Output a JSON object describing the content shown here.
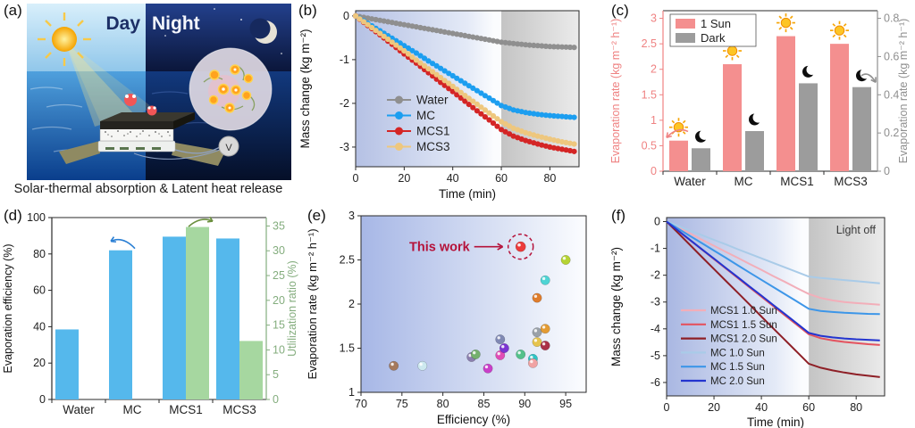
{
  "panel_labels": {
    "a": "(a)",
    "b": "(b)",
    "c": "(c)",
    "d": "(d)",
    "e": "(e)",
    "f": "(f)"
  },
  "panel_a": {
    "day_label": "Day",
    "night_label": "Night",
    "voltmeter_label": "V",
    "caption": "Solar-thermal absorption & Latent heat release"
  },
  "chart_data": [
    {
      "id": "b",
      "type": "line",
      "title": "",
      "xlabel": "Time (min)",
      "ylabel": "Mass change (kg m⁻²)",
      "xlim": [
        0,
        92
      ],
      "ylim": [
        -3.45,
        0.12
      ],
      "xticks": [
        0,
        20,
        40,
        60,
        80
      ],
      "yticks": [
        0,
        -1,
        -2,
        -3
      ],
      "shade_from_x": 60,
      "markers": true,
      "legend_position": "center-left",
      "x": [
        0,
        5,
        10,
        15,
        20,
        25,
        30,
        35,
        40,
        45,
        50,
        55,
        60,
        65,
        70,
        75,
        80,
        85,
        90
      ],
      "series": [
        {
          "name": "Water",
          "color": "#8f8f8f",
          "values": [
            0,
            -0.05,
            -0.1,
            -0.15,
            -0.2,
            -0.25,
            -0.3,
            -0.35,
            -0.4,
            -0.45,
            -0.5,
            -0.55,
            -0.6,
            -0.63,
            -0.66,
            -0.68,
            -0.7,
            -0.71,
            -0.72
          ]
        },
        {
          "name": "MC",
          "color": "#1c9ef0",
          "values": [
            0,
            -0.17,
            -0.34,
            -0.51,
            -0.68,
            -0.85,
            -1.03,
            -1.2,
            -1.37,
            -1.54,
            -1.71,
            -1.88,
            -2.05,
            -2.15,
            -2.21,
            -2.25,
            -2.28,
            -2.3,
            -2.32
          ]
        },
        {
          "name": "MCS1",
          "color": "#d42525",
          "values": [
            0,
            -0.22,
            -0.43,
            -0.65,
            -0.87,
            -1.08,
            -1.3,
            -1.52,
            -1.73,
            -1.95,
            -2.17,
            -2.38,
            -2.6,
            -2.75,
            -2.85,
            -2.93,
            -3.0,
            -3.05,
            -3.1
          ]
        },
        {
          "name": "MCS3",
          "color": "#eec77e",
          "values": [
            0,
            -0.2,
            -0.4,
            -0.6,
            -0.8,
            -1.01,
            -1.21,
            -1.41,
            -1.61,
            -1.82,
            -2.02,
            -2.22,
            -2.42,
            -2.57,
            -2.67,
            -2.75,
            -2.82,
            -2.88,
            -2.93
          ]
        }
      ],
      "legend_order": [
        "Water",
        "MC",
        "MCS1",
        "MCS3"
      ]
    },
    {
      "id": "c",
      "type": "bar",
      "title": "",
      "categories": [
        "Water",
        "MC",
        "MCS1",
        "MCS3"
      ],
      "left_axis": {
        "label": "Evaporation rate (kg m⁻² h⁻¹)",
        "lim": [
          0,
          3.15
        ],
        "ticks": [
          0,
          0.5,
          1,
          1.5,
          2,
          2.5,
          3
        ],
        "color": "#ef8282"
      },
      "right_axis": {
        "label": "Evaporation rate (kg m⁻² h⁻¹)",
        "lim": [
          0,
          0.84
        ],
        "ticks": [
          0,
          0.2,
          0.4,
          0.6,
          0.8
        ],
        "color": "#8f8f8f"
      },
      "series": [
        {
          "name": "1 Sun",
          "axis": "left",
          "color": "#f48f8f",
          "icon": "sun",
          "values": [
            0.6,
            2.1,
            2.65,
            2.5
          ]
        },
        {
          "name": "Dark",
          "axis": "right",
          "color": "#9c9c9c",
          "icon": "moon",
          "values": [
            0.12,
            0.21,
            0.46,
            0.44
          ]
        }
      ],
      "legend_position": "top-left"
    },
    {
      "id": "d",
      "type": "bar",
      "title": "",
      "categories": [
        "Water",
        "MC",
        "MCS1",
        "MCS3"
      ],
      "left_axis": {
        "label": "Evaporation efficiency (%)",
        "lim": [
          0,
          100
        ],
        "ticks": [
          0,
          20,
          40,
          60,
          80,
          100
        ],
        "color": "#222222"
      },
      "right_axis": {
        "label": "Utlilization ratio (%)",
        "lim": [
          0,
          36.7
        ],
        "ticks": [
          0,
          5,
          10,
          15,
          20,
          25,
          30,
          35
        ],
        "color": "#84ad7e"
      },
      "series": [
        {
          "name": "Evaporation efficiency",
          "axis": "left",
          "color": "#55b8ec",
          "values": [
            38.5,
            82,
            89.5,
            88.5
          ]
        },
        {
          "name": "Utilization ratio",
          "axis": "right",
          "color": "#a6d7a0",
          "values": [
            null,
            null,
            34.8,
            11.8
          ]
        }
      ],
      "arrow_colors": {
        "left": "#2a7fd4",
        "right": "#6b8f3e"
      }
    },
    {
      "id": "e",
      "type": "scatter",
      "title": "",
      "xlabel": "Efficiency (%)",
      "ylabel": "Evaporation rate (kg m⁻² h⁻¹)",
      "xlim": [
        70,
        97.5
      ],
      "ylim": [
        1,
        3
      ],
      "xticks": [
        70,
        75,
        80,
        85,
        90,
        95
      ],
      "yticks": [
        1,
        1.5,
        2,
        2.5,
        3
      ],
      "points": [
        {
          "x": 74,
          "y": 1.3,
          "color": "#a5795c"
        },
        {
          "x": 77.5,
          "y": 1.3,
          "color": "#cde9ef"
        },
        {
          "x": 83.5,
          "y": 1.4,
          "color": "#8b7fae"
        },
        {
          "x": 84,
          "y": 1.43,
          "color": "#74b06d"
        },
        {
          "x": 85.5,
          "y": 1.27,
          "color": "#c93fc9"
        },
        {
          "x": 87,
          "y": 1.42,
          "color": "#e04cb5"
        },
        {
          "x": 87.5,
          "y": 1.5,
          "color": "#7b34d2"
        },
        {
          "x": 87,
          "y": 1.6,
          "color": "#8089b4"
        },
        {
          "x": 89.5,
          "y": 1.43,
          "color": "#52c18a"
        },
        {
          "x": 91,
          "y": 1.38,
          "color": "#2fc4c4"
        },
        {
          "x": 91,
          "y": 1.33,
          "color": "#f0a3a3"
        },
        {
          "x": 91.5,
          "y": 1.57,
          "color": "#e6c44e"
        },
        {
          "x": 92.5,
          "y": 1.53,
          "color": "#ab3048"
        },
        {
          "x": 91.5,
          "y": 1.68,
          "color": "#9aa1a8"
        },
        {
          "x": 92.5,
          "y": 1.72,
          "color": "#e39b33"
        },
        {
          "x": 91.5,
          "y": 2.07,
          "color": "#df7d2c"
        },
        {
          "x": 92.5,
          "y": 2.27,
          "color": "#4ed4d4"
        },
        {
          "x": 95,
          "y": 2.5,
          "color": "#b5d333"
        }
      ],
      "highlight": {
        "x": 89.5,
        "y": 2.65,
        "color": "#ec3b3b",
        "annotation": "This work",
        "annotation_color": "#b5123a"
      }
    },
    {
      "id": "f",
      "type": "line",
      "title": "",
      "xlabel": "Time (min)",
      "ylabel": "Mass change (kg m⁻²)",
      "xlim": [
        0,
        92
      ],
      "ylim": [
        -6.5,
        0.15
      ],
      "xticks": [
        0,
        20,
        40,
        60,
        80
      ],
      "yticks": [
        0,
        -1,
        -2,
        -3,
        -4,
        -5,
        -6
      ],
      "shade_from_x": 60,
      "shade_label": "Light off",
      "markers": false,
      "legend_position": "bottom-left",
      "x": [
        0,
        5,
        10,
        15,
        20,
        25,
        30,
        35,
        40,
        45,
        50,
        55,
        60,
        65,
        70,
        75,
        80,
        85,
        90
      ],
      "series": [
        {
          "name": "MCS1 1.0 Sun",
          "color": "#f2aeb9",
          "values": [
            0,
            -0.23,
            -0.45,
            -0.68,
            -0.9,
            -1.13,
            -1.35,
            -1.58,
            -1.8,
            -2.03,
            -2.25,
            -2.48,
            -2.7,
            -2.85,
            -2.94,
            -3.0,
            -3.04,
            -3.07,
            -3.1
          ]
        },
        {
          "name": "MCS1 1.5 Sun",
          "color": "#e4535f",
          "values": [
            0,
            -0.35,
            -0.7,
            -1.05,
            -1.4,
            -1.75,
            -2.1,
            -2.45,
            -2.8,
            -3.15,
            -3.5,
            -3.85,
            -4.2,
            -4.35,
            -4.43,
            -4.49,
            -4.53,
            -4.57,
            -4.6
          ]
        },
        {
          "name": "MCS1 2.0 Sun",
          "color": "#8e1f26",
          "values": [
            0,
            -0.44,
            -0.88,
            -1.33,
            -1.77,
            -2.21,
            -2.65,
            -3.09,
            -3.54,
            -3.98,
            -4.42,
            -4.86,
            -5.3,
            -5.45,
            -5.55,
            -5.63,
            -5.7,
            -5.75,
            -5.8
          ]
        },
        {
          "name": "MC 1.0 Sun",
          "color": "#a9cbe8",
          "values": [
            0,
            -0.17,
            -0.34,
            -0.51,
            -0.68,
            -0.85,
            -1.03,
            -1.2,
            -1.37,
            -1.54,
            -1.71,
            -1.88,
            -2.05,
            -2.1,
            -2.14,
            -2.18,
            -2.22,
            -2.26,
            -2.3
          ]
        },
        {
          "name": "MC 1.5 Sun",
          "color": "#3d96e8",
          "values": [
            0,
            -0.27,
            -0.54,
            -0.81,
            -1.08,
            -1.35,
            -1.63,
            -1.9,
            -2.17,
            -2.44,
            -2.71,
            -2.98,
            -3.25,
            -3.33,
            -3.37,
            -3.4,
            -3.42,
            -3.44,
            -3.45
          ]
        },
        {
          "name": "MC 2.0 Sun",
          "color": "#2334cf",
          "values": [
            0,
            -0.35,
            -0.69,
            -1.04,
            -1.38,
            -1.73,
            -2.07,
            -2.42,
            -2.76,
            -3.11,
            -3.45,
            -3.8,
            -4.15,
            -4.26,
            -4.32,
            -4.36,
            -4.39,
            -4.41,
            -4.43
          ]
        }
      ]
    }
  ]
}
